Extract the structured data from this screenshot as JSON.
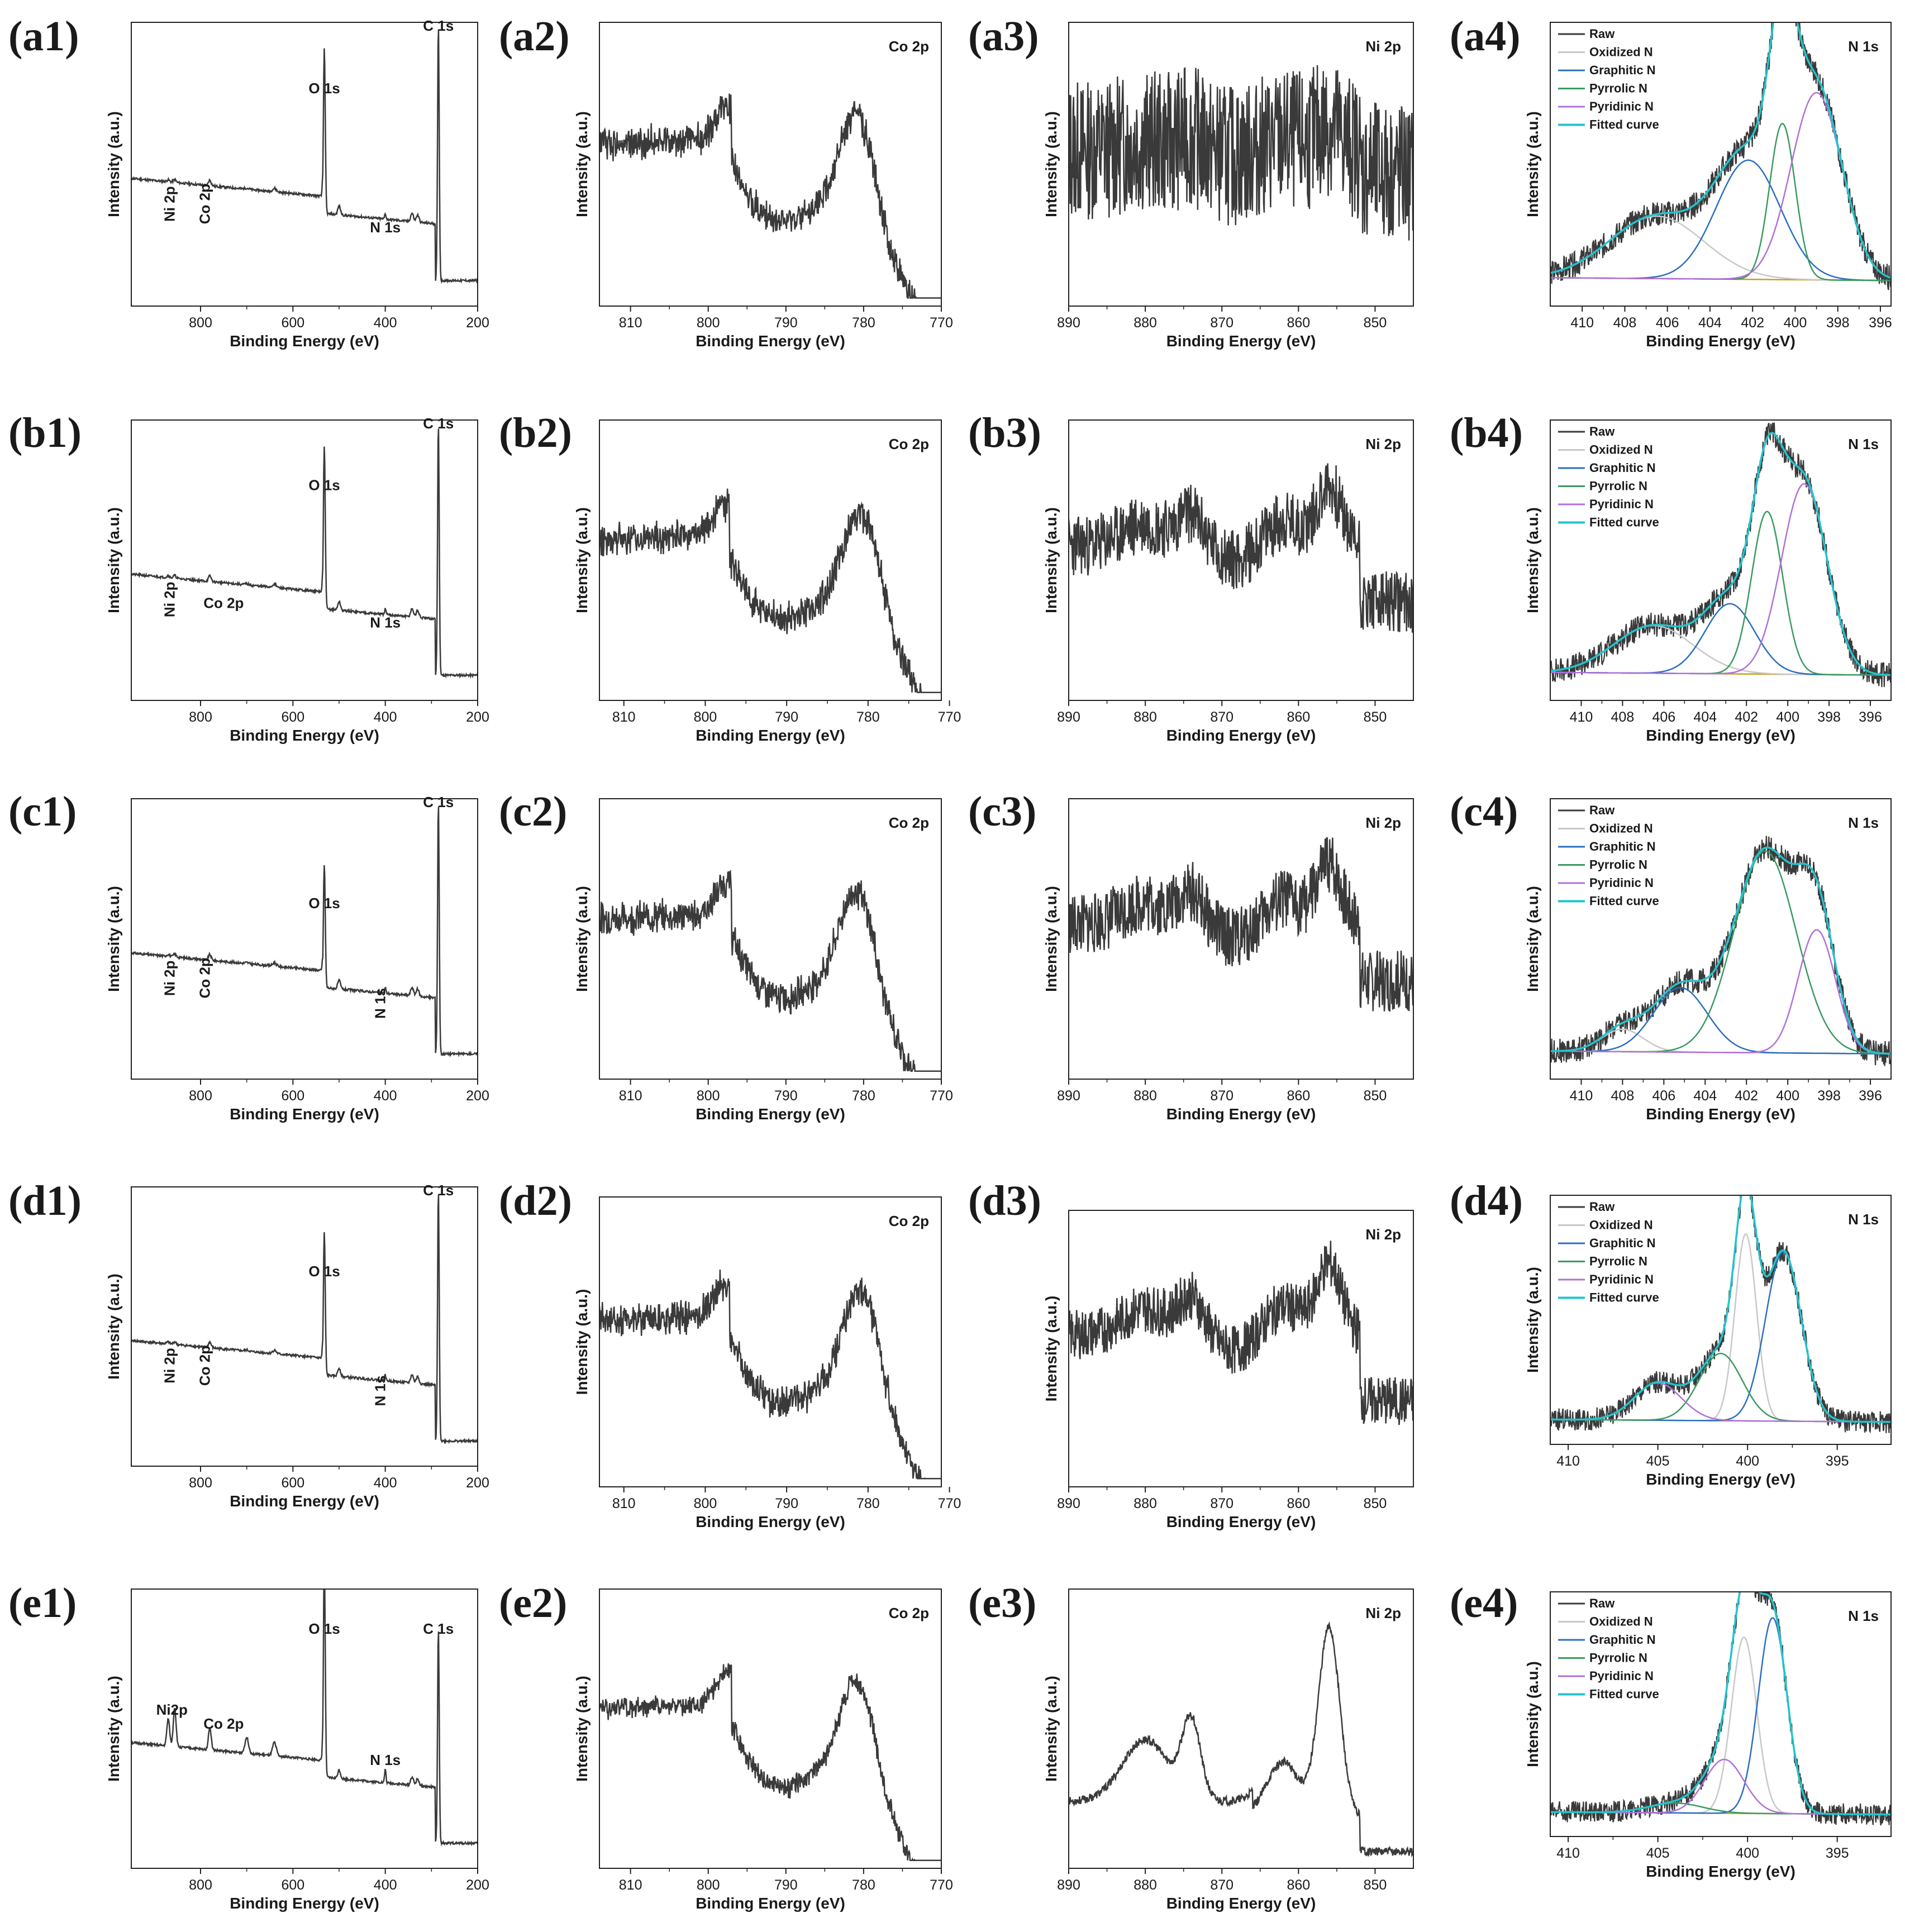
{
  "figure": {
    "colors": {
      "raw": "#3a3a3a",
      "oxidized": "#c8c8c8",
      "graphitic": "#2a6fc0",
      "pyrrolic": "#3a9a60",
      "pyridinic": "#b070d8",
      "fitted": "#23c3cc",
      "baseline": "#c8a020"
    },
    "x_label": "Binding Energy (eV)",
    "y_label": "Intensity (a.u.)",
    "legend": [
      "Raw",
      "Oxidized N",
      "Graphitic N",
      "Pyrrolic N",
      "Pyridinic N",
      "Fitted curve"
    ]
  },
  "chart_data": [
    {
      "id": "a1",
      "panel_label": "(a1)",
      "type": "line",
      "kind": "survey",
      "title": "",
      "xlabel": "Binding Energy (eV)",
      "ylabel": "Intensity (a.u.)",
      "xlim": [
        950,
        200
      ],
      "xticks": [
        800,
        600,
        400,
        200
      ],
      "annotations": [
        {
          "text": "C 1s",
          "x": 285,
          "y": 0.97
        },
        {
          "text": "O 1s",
          "x": 532,
          "y": 0.75
        },
        {
          "text": "N 1s",
          "x": 400,
          "y": 0.26
        },
        {
          "text": "Ni 2p",
          "x": 856,
          "y": 0.36
        },
        {
          "text": "Co 2p",
          "x": 780,
          "y": 0.36
        }
      ],
      "rot_labels": true,
      "peaks": {
        "C": 0.9,
        "O": 0.58,
        "N": 0.02,
        "Ni": 0.01,
        "Co": 0.02
      },
      "seed": 11
    },
    {
      "id": "a2",
      "panel_label": "(a2)",
      "type": "line",
      "kind": "co",
      "title": "Co 2p",
      "xlabel": "Binding Energy (eV)",
      "ylabel": "Intensity (a.u.)",
      "xlim": [
        814,
        770
      ],
      "xticks": [
        810,
        800,
        790,
        780,
        770
      ],
      "noise": 0.12,
      "seed": 12
    },
    {
      "id": "a3",
      "panel_label": "(a3)",
      "type": "line",
      "kind": "ni",
      "title": "Ni 2p",
      "xlabel": "Binding Energy (eV)",
      "ylabel": "Intensity (a.u.)",
      "xlim": [
        890,
        845
      ],
      "xticks": [
        890,
        880,
        870,
        860,
        850
      ],
      "noise": 0.5,
      "steps": 0.2,
      "seed": 13
    },
    {
      "id": "a4",
      "panel_label": "(a4)",
      "type": "line",
      "kind": "n1s",
      "title": "N 1s",
      "xlabel": "Binding Energy (eV)",
      "ylabel": "Intensity (a.u.)",
      "xlim": [
        411.5,
        395.5
      ],
      "xticks": [
        410,
        408,
        406,
        404,
        402,
        400,
        398,
        396
      ],
      "legend": [
        "Raw",
        "Oxidized N",
        "Graphitic N",
        "Pyrrolic N",
        "Pyridinic N",
        "Fitted curve"
      ],
      "components": {
        "oxidized": [
          406.5,
          0.22,
          2.2
        ],
        "graphitic": [
          402.2,
          0.42,
          1.5
        ],
        "pyrrolic": [
          400.6,
          0.55,
          0.6
        ],
        "pyridinic": [
          399.0,
          0.66,
          1.2
        ]
      },
      "seed": 14
    },
    {
      "id": "b1",
      "panel_label": "(b1)",
      "type": "line",
      "kind": "survey",
      "title": "",
      "xlabel": "Binding Energy (eV)",
      "ylabel": "Intensity (a.u.)",
      "xlim": [
        950,
        200
      ],
      "xticks": [
        800,
        600,
        400,
        200
      ],
      "annotations": [
        {
          "text": "C 1s",
          "x": 285,
          "y": 0.97
        },
        {
          "text": "O 1s",
          "x": 532,
          "y": 0.75
        },
        {
          "text": "N 1s",
          "x": 400,
          "y": 0.26
        },
        {
          "text": "Ni 2p",
          "x": 856,
          "y": 0.36
        },
        {
          "text": "Co 2p",
          "x": 750,
          "y": 0.33
        }
      ],
      "rot_labels": [
        true,
        false
      ],
      "peaks": {
        "C": 0.9,
        "O": 0.58,
        "N": 0.02,
        "Ni": 0.01,
        "Co": 0.02
      },
      "seed": 21
    },
    {
      "id": "b2",
      "panel_label": "(b2)",
      "type": "line",
      "kind": "co",
      "title": "Co 2p",
      "xlabel": "Binding Energy (eV)",
      "ylabel": "Intensity (a.u.)",
      "xlim": [
        813,
        771
      ],
      "xticks": [
        810,
        800,
        790,
        780,
        770
      ],
      "noise": 0.12,
      "seed": 22
    },
    {
      "id": "b3",
      "panel_label": "(b3)",
      "type": "line",
      "kind": "ni",
      "title": "Ni 2p",
      "xlabel": "Binding Energy (eV)",
      "ylabel": "Intensity (a.u.)",
      "xlim": [
        890,
        845
      ],
      "xticks": [
        890,
        880,
        870,
        860,
        850
      ],
      "noise": 0.22,
      "steps": 0.5,
      "seed": 23
    },
    {
      "id": "b4",
      "panel_label": "(b4)",
      "type": "line",
      "kind": "n1s",
      "title": "N 1s",
      "xlabel": "Binding Energy (eV)",
      "ylabel": "Intensity (a.u.)",
      "xlim": [
        411.5,
        395
      ],
      "xticks": [
        410,
        408,
        406,
        404,
        402,
        400,
        398,
        396
      ],
      "legend": [
        "Raw",
        "Oxidized N",
        "Graphitic N",
        "Pyrrolic N",
        "Pyridinic N",
        "Fitted curve"
      ],
      "components": {
        "oxidized": [
          406.5,
          0.17,
          1.9
        ],
        "graphitic": [
          402.8,
          0.25,
          1.2
        ],
        "pyrrolic": [
          401.0,
          0.58,
          0.75
        ],
        "pyridinic": [
          399.2,
          0.68,
          1.1
        ]
      },
      "seed": 24
    },
    {
      "id": "c1",
      "panel_label": "(c1)",
      "type": "line",
      "kind": "survey",
      "title": "",
      "xlabel": "Binding Energy (eV)",
      "ylabel": "Intensity (a.u.)",
      "xlim": [
        950,
        200
      ],
      "xticks": [
        800,
        600,
        400,
        200
      ],
      "annotations": [
        {
          "text": "C 1s",
          "x": 285,
          "y": 0.97
        },
        {
          "text": "O 1s",
          "x": 532,
          "y": 0.61
        },
        {
          "text": "N 1s",
          "x": 400,
          "y": 0.27
        },
        {
          "text": "Ni 2p",
          "x": 856,
          "y": 0.36
        },
        {
          "text": "Co 2p",
          "x": 780,
          "y": 0.36
        }
      ],
      "rot_labels": true,
      "peaks": {
        "C": 0.9,
        "O": 0.44,
        "N": 0.02,
        "Ni": 0.01,
        "Co": 0.02
      },
      "seed": 31
    },
    {
      "id": "c2",
      "panel_label": "(c2)",
      "type": "line",
      "kind": "co",
      "title": "Co 2p",
      "xlabel": "Binding Energy (eV)",
      "ylabel": "Intensity (a.u.)",
      "xlim": [
        814,
        770
      ],
      "xticks": [
        810,
        800,
        790,
        780,
        770
      ],
      "noise": 0.12,
      "seed": 32
    },
    {
      "id": "c3",
      "panel_label": "(c3)",
      "type": "line",
      "kind": "ni",
      "title": "Ni 2p",
      "xlabel": "Binding Energy (eV)",
      "ylabel": "Intensity (a.u.)",
      "xlim": [
        890,
        845
      ],
      "xticks": [
        890,
        880,
        870,
        860,
        850
      ],
      "noise": 0.22,
      "steps": 0.5,
      "seed": 33
    },
    {
      "id": "c4",
      "panel_label": "(c4)",
      "type": "line",
      "kind": "n1s",
      "title": "N 1s",
      "xlabel": "Binding Energy (eV)",
      "ylabel": "Intensity (a.u.)",
      "xlim": [
        411.5,
        395
      ],
      "xticks": [
        410,
        408,
        406,
        404,
        402,
        400,
        398,
        396
      ],
      "legend": [
        "Raw",
        "Oxidized N",
        "Graphitic N",
        "Pyrrolic N",
        "Pyridinic N",
        "Fitted curve"
      ],
      "components": {
        "oxidized": [
          408.0,
          0.08,
          1.0
        ],
        "graphitic": [
          405.2,
          0.23,
          1.3
        ],
        "pyrrolic": [
          401.1,
          0.72,
          1.5
        ],
        "pyridinic": [
          398.6,
          0.44,
          0.9
        ]
      },
      "seed": 34
    },
    {
      "id": "d1",
      "panel_label": "(d1)",
      "type": "line",
      "kind": "survey",
      "title": "",
      "xlabel": "Binding Energy (eV)",
      "ylabel": "Intensity (a.u.)",
      "xlim": [
        950,
        200
      ],
      "xticks": [
        800,
        600,
        400,
        200
      ],
      "annotations": [
        {
          "text": "C 1s",
          "x": 285,
          "y": 0.97
        },
        {
          "text": "O 1s",
          "x": 532,
          "y": 0.68
        },
        {
          "text": "N 1s",
          "x": 400,
          "y": 0.27
        },
        {
          "text": "Ni 2p",
          "x": 856,
          "y": 0.36
        },
        {
          "text": "Co 2p",
          "x": 780,
          "y": 0.36
        }
      ],
      "rot_labels": true,
      "peaks": {
        "C": 0.9,
        "O": 0.51,
        "N": 0.02,
        "Ni": 0.01,
        "Co": 0.02
      },
      "seed": 41
    },
    {
      "id": "d2",
      "panel_label": "(d2)",
      "type": "line",
      "kind": "co",
      "title": "Co 2p",
      "xlabel": "Binding Energy (eV)",
      "ylabel": "Intensity (a.u.)",
      "xlim": [
        813,
        771
      ],
      "xticks": [
        810,
        800,
        790,
        780,
        770
      ],
      "noise": 0.12,
      "seed": 42
    },
    {
      "id": "d3",
      "panel_label": "(d3)",
      "type": "line",
      "kind": "ni",
      "title": "Ni 2p",
      "xlabel": "Binding Energy (eV)",
      "ylabel": "Intensity (a.u.)",
      "xlim": [
        890,
        845
      ],
      "xticks": [
        890,
        880,
        870,
        860,
        850
      ],
      "noise": 0.18,
      "steps": 0.6,
      "seed": 43
    },
    {
      "id": "d4",
      "panel_label": "(d4)",
      "type": "line",
      "kind": "n1s",
      "title": "N 1s",
      "xlabel": "Binding Energy (eV)",
      "ylabel": "Intensity (a.u.)",
      "xlim": [
        411,
        392
      ],
      "xticks": [
        410,
        405,
        400,
        395
      ],
      "legend": [
        "Raw",
        "Oxidized N",
        "Graphitic N",
        "Pyrrolic N",
        "Pyridinic N",
        "Fitted curve"
      ],
      "components": {
        "oxidized": [
          400.1,
          0.75,
          0.6
        ],
        "graphitic": [
          398.0,
          0.68,
          1.0
        ],
        "pyrrolic": [
          401.5,
          0.27,
          1.2
        ],
        "pyridinic": [
          405.0,
          0.15,
          1.3
        ]
      },
      "seed": 44
    },
    {
      "id": "e1",
      "panel_label": "(e1)",
      "type": "line",
      "kind": "survey",
      "title": "",
      "xlabel": "Binding Energy (eV)",
      "ylabel": "Intensity (a.u.)",
      "xlim": [
        950,
        200
      ],
      "xticks": [
        800,
        600,
        400,
        200
      ],
      "annotations": [
        {
          "text": "C 1s",
          "x": 285,
          "y": 0.84
        },
        {
          "text": "O 1s",
          "x": 532,
          "y": 0.84
        },
        {
          "text": "N 1s",
          "x": 400,
          "y": 0.37
        },
        {
          "text": "Ni2p",
          "x": 862,
          "y": 0.55
        },
        {
          "text": "Co 2p",
          "x": 750,
          "y": 0.5
        }
      ],
      "rot_labels": false,
      "peaks": {
        "C": 0.77,
        "O": 0.77,
        "N": 0.05,
        "Ni": 0.14,
        "Co": 0.08
      },
      "seed": 51
    },
    {
      "id": "e2",
      "panel_label": "(e2)",
      "type": "line",
      "kind": "co",
      "title": "Co 2p",
      "xlabel": "Binding Energy (eV)",
      "ylabel": "Intensity (a.u.)",
      "xlim": [
        814,
        770
      ],
      "xticks": [
        810,
        800,
        790,
        780,
        770
      ],
      "noise": 0.08,
      "seed": 52
    },
    {
      "id": "e3",
      "panel_label": "(e3)",
      "type": "line",
      "kind": "ni",
      "title": "Ni 2p",
      "xlabel": "Binding Energy (eV)",
      "ylabel": "Intensity (a.u.)",
      "xlim": [
        890,
        845
      ],
      "xticks": [
        890,
        880,
        870,
        860,
        850
      ],
      "noise": 0.03,
      "steps": 1.0,
      "seed": 53
    },
    {
      "id": "e4",
      "panel_label": "(e4)",
      "type": "line",
      "kind": "n1s",
      "title": "N 1s",
      "xlabel": "Binding Energy (eV)",
      "ylabel": "Intensity (a.u.)",
      "xlim": [
        411,
        392
      ],
      "xticks": [
        410,
        405,
        400,
        395
      ],
      "legend": [
        "Raw",
        "Oxidized N",
        "Graphitic N",
        "Pyrrolic N",
        "Pyridinic N",
        "Fitted curve"
      ],
      "components": {
        "oxidized": [
          400.2,
          0.72,
          0.7
        ],
        "graphitic": [
          398.6,
          0.8,
          0.8
        ],
        "pyrrolic": [
          404.0,
          0.04,
          1.5
        ],
        "pyridinic": [
          401.3,
          0.22,
          1.1
        ]
      },
      "seed": 54
    }
  ]
}
